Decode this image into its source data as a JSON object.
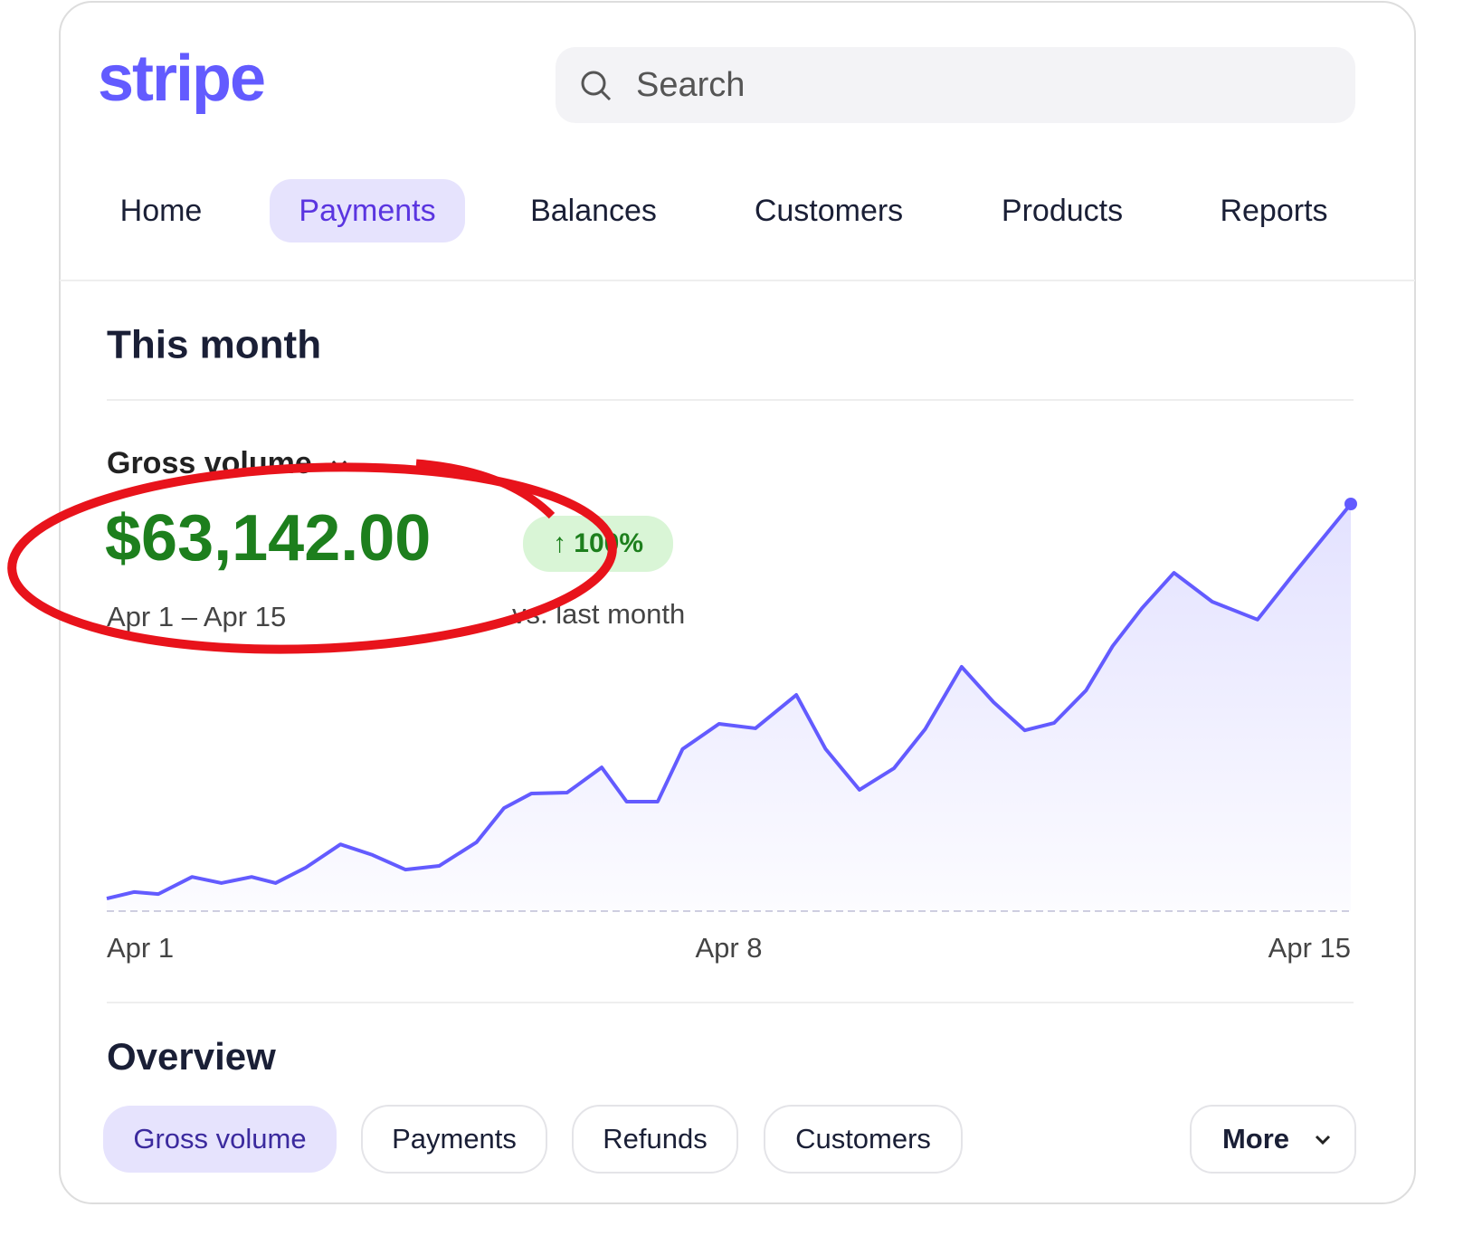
{
  "header": {
    "logo": "stripe",
    "search_placeholder": "Search"
  },
  "nav": [
    "Home",
    "Payments",
    "Balances",
    "Customers",
    "Products",
    "Reports"
  ],
  "summary": {
    "title": "This month",
    "metric": "Gross volume",
    "amount": "$63,142.00",
    "change": "↑ 100%",
    "period": "Apr 1 – Apr 15",
    "comparison": "vs. last month"
  },
  "chart_data": {
    "type": "line",
    "color": "#635bff",
    "x": [
      1.0,
      1.31,
      1.58,
      1.96,
      2.29,
      2.63,
      2.9,
      3.24,
      3.63,
      3.99,
      4.36,
      4.74,
      5.16,
      5.47,
      5.78,
      6.18,
      6.57,
      6.85,
      7.2,
      7.48,
      7.89,
      8.3,
      8.76,
      9.09,
      9.47,
      9.86,
      10.21,
      10.62,
      10.98,
      11.33,
      11.66,
      12.02,
      12.32,
      12.65,
      13.01,
      13.44,
      13.95,
      14.36,
      15.0
    ],
    "values": [
      3.1,
      4.7,
      4.2,
      8.4,
      6.9,
      8.4,
      6.9,
      10.7,
      16.4,
      13.8,
      10.2,
      11.1,
      16.9,
      25.3,
      28.9,
      29.1,
      35.3,
      26.9,
      26.9,
      39.8,
      46,
      44.9,
      53.1,
      39.8,
      29.8,
      35.1,
      44.7,
      60,
      51.3,
      44.4,
      46.2,
      54.2,
      65.1,
      74.4,
      83.1,
      76,
      71.6,
      82.9,
      100
    ],
    "xlim": [
      1,
      15
    ],
    "xticks": [
      {
        "value": 1,
        "label": "Apr 1"
      },
      {
        "value": 8,
        "label": "Apr 8"
      },
      {
        "value": 15,
        "label": "Apr 15"
      }
    ],
    "ylim": [
      0,
      100
    ]
  },
  "overview": {
    "title": "Overview",
    "tabs": [
      "Gross volume",
      "Payments",
      "Refunds",
      "Customers"
    ],
    "more": "More"
  }
}
